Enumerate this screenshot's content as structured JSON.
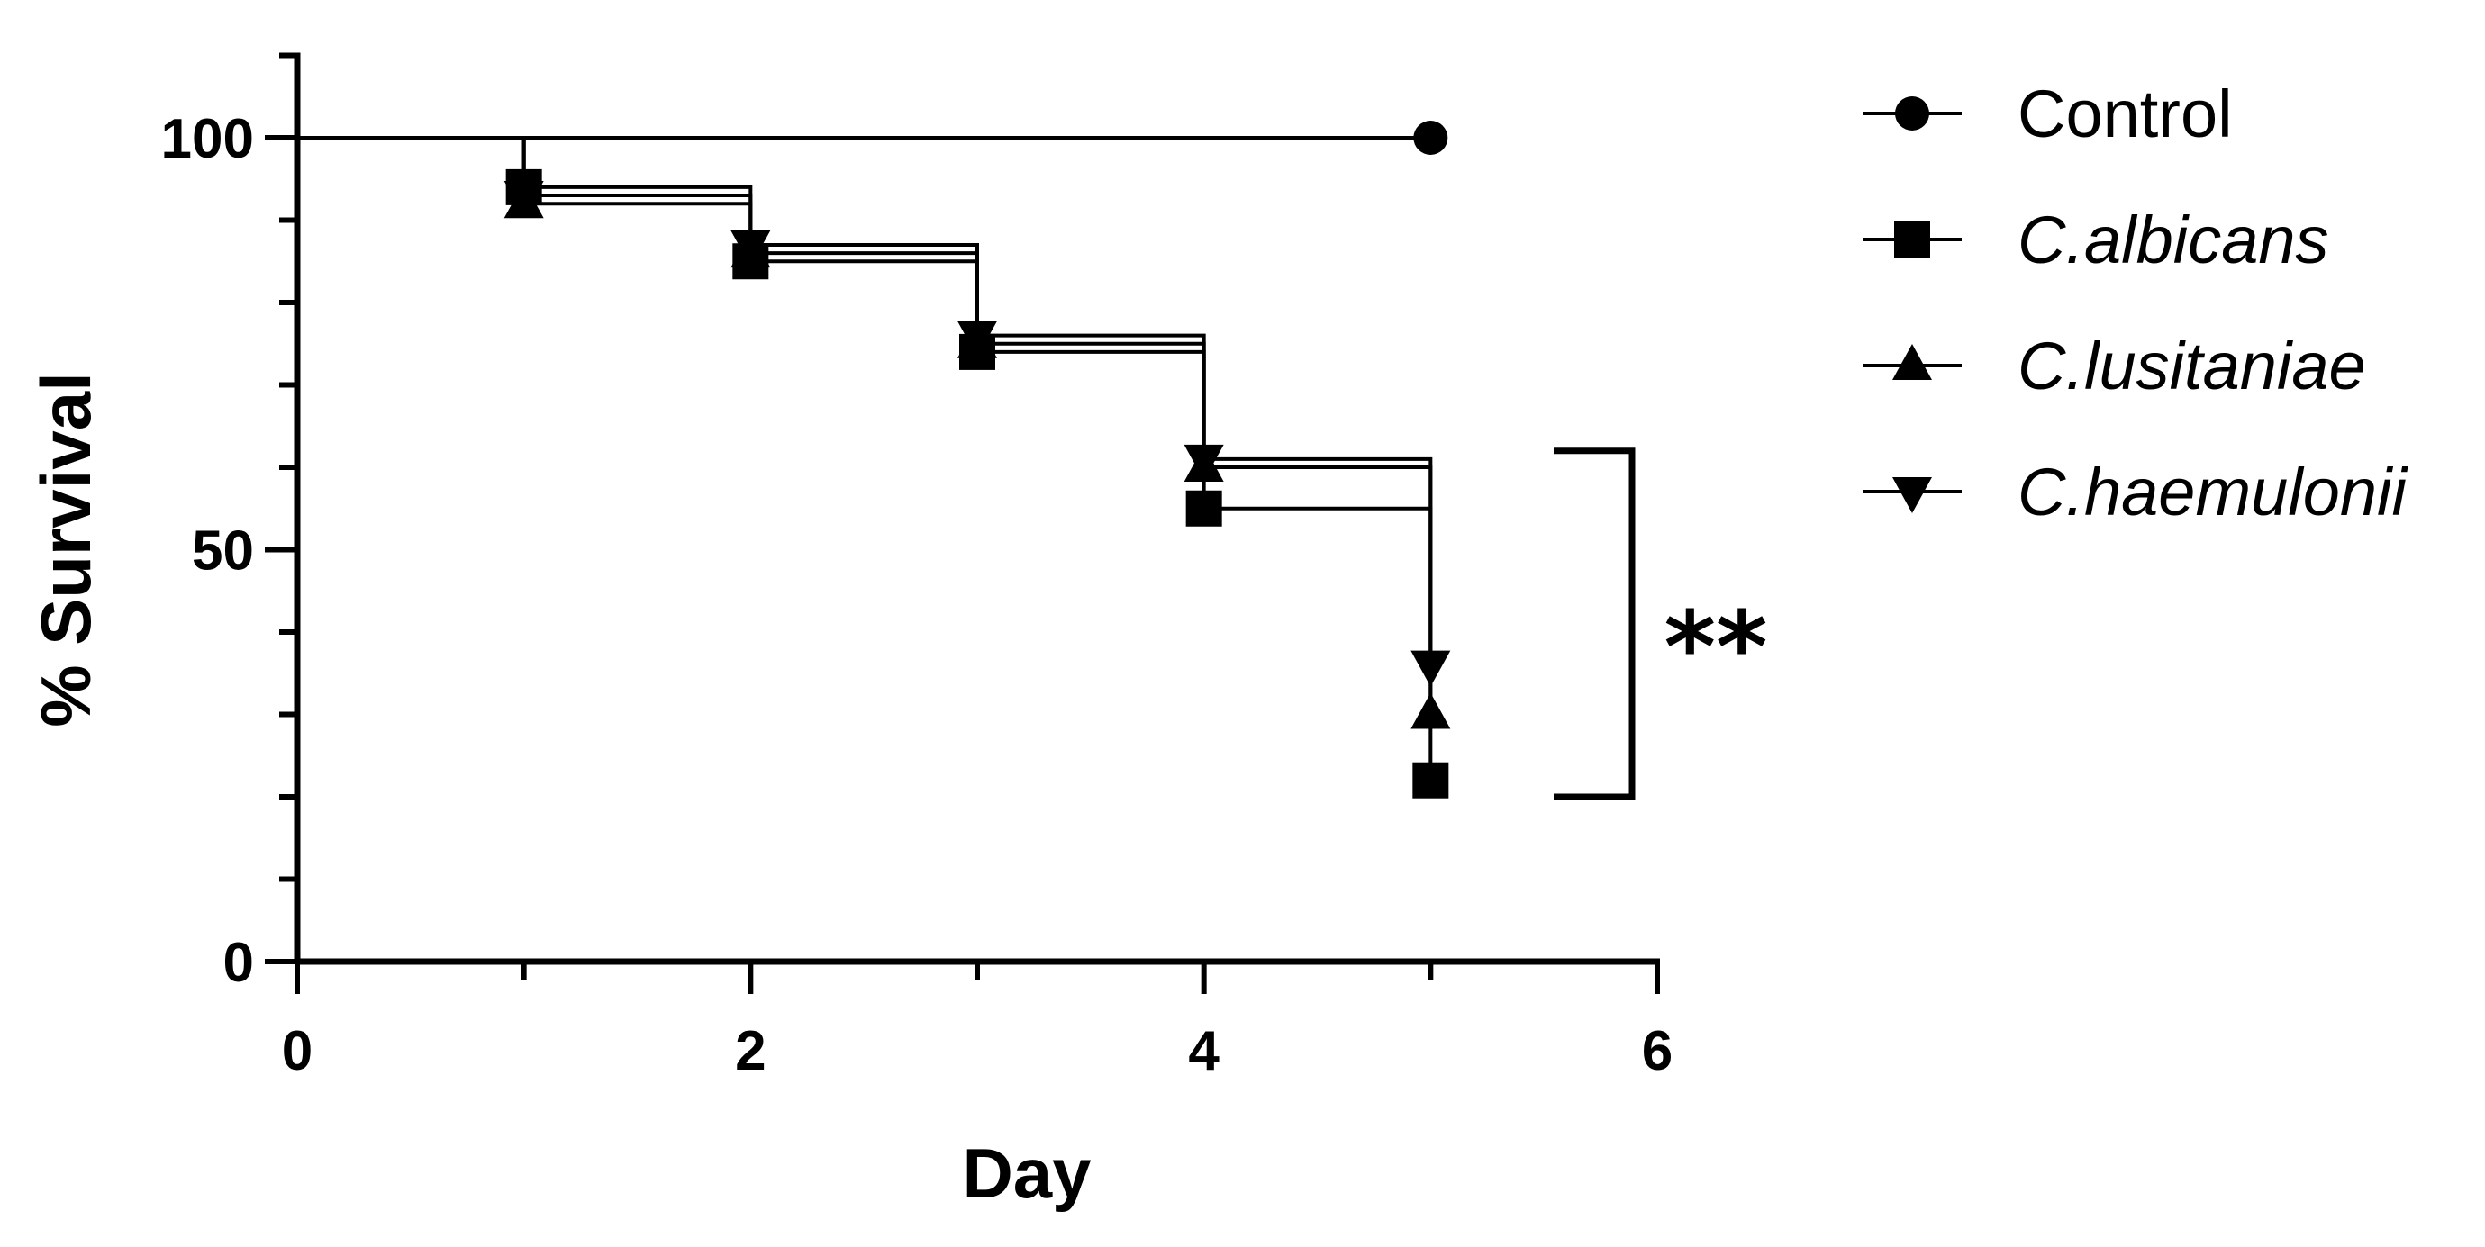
{
  "chart_data": {
    "type": "line",
    "subtype": "step",
    "title": "",
    "xlabel": "Day",
    "ylabel": "% Survival",
    "xlim": [
      0,
      6
    ],
    "ylim": [
      0,
      110
    ],
    "x_ticks": [
      0,
      2,
      4,
      6
    ],
    "x_tick_labels": [
      "0",
      "2",
      "4",
      "6"
    ],
    "x_minor_step": 1,
    "y_ticks": [
      0,
      50,
      100
    ],
    "y_tick_labels": [
      "0",
      "50",
      "100"
    ],
    "y_minor_step": 10,
    "grid": false,
    "legend_position": "top-right",
    "series": [
      {
        "name": "Control",
        "marker": "circle",
        "italic": false,
        "x": [
          0,
          5
        ],
        "y": [
          100,
          100
        ]
      },
      {
        "name": "C.albicans",
        "marker": "square",
        "italic": true,
        "x": [
          0,
          1,
          2,
          3,
          4,
          5
        ],
        "y": [
          100,
          94,
          85,
          74,
          55,
          22
        ]
      },
      {
        "name": "C.lusitaniae",
        "marker": "triangle-up",
        "italic": true,
        "x": [
          0,
          1,
          2,
          3,
          4,
          5
        ],
        "y": [
          100,
          92,
          86,
          75,
          60,
          30
        ]
      },
      {
        "name": "C.haemulonii",
        "marker": "triangle-down",
        "italic": true,
        "x": [
          0,
          1,
          2,
          3,
          4,
          5
        ],
        "y": [
          100,
          93,
          87,
          76,
          61,
          36
        ]
      }
    ],
    "annotations": [
      {
        "type": "bracket",
        "text": "**",
        "y_range": [
          20,
          62
        ]
      }
    ]
  }
}
